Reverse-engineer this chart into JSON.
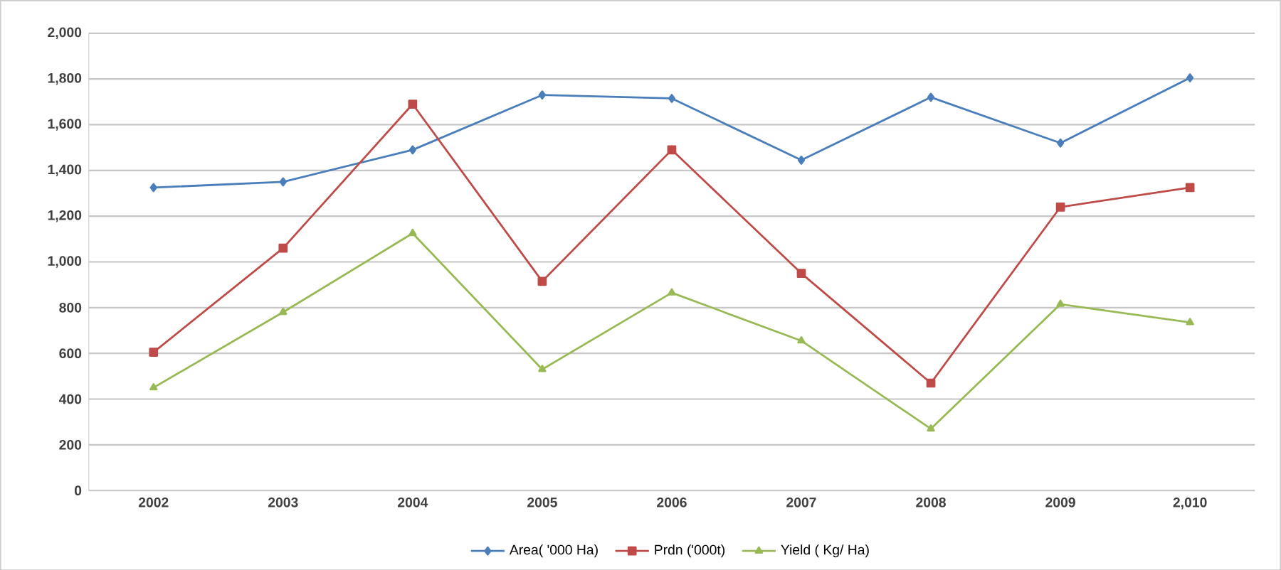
{
  "chart_data": {
    "type": "line",
    "categories": [
      "2002",
      "2003",
      "2004",
      "2005",
      "2006",
      "2007",
      "2008",
      "2009",
      "2,010"
    ],
    "ylim": [
      0,
      2000
    ],
    "yticks": [
      0,
      200,
      400,
      600,
      800,
      {
        "value": 1000,
        "label": "1,000"
      },
      {
        "value": 1200,
        "label": "1,200"
      },
      {
        "value": 1400,
        "label": "1,400"
      },
      {
        "value": 1600,
        "label": "1,600"
      },
      {
        "value": 1800,
        "label": "1,800"
      },
      {
        "value": 2000,
        "label": "2,000"
      }
    ],
    "grid": "y",
    "legend": "bottom",
    "line_style": "solid",
    "series": [
      {
        "name": "Area( '000 Ha)",
        "color": "#4a7ebb",
        "marker": "diamond",
        "values": [
          1325,
          1350,
          1490,
          1730,
          1715,
          1445,
          1720,
          1520,
          1805
        ]
      },
      {
        "name": "Prdn ('000t)",
        "color": "#be4b48",
        "marker": "square",
        "values": [
          605,
          1060,
          1690,
          915,
          1490,
          950,
          470,
          1240,
          1325
        ]
      },
      {
        "name": "Yield ( Kg/ Ha)",
        "color": "#98b954",
        "marker": "triangle",
        "values": [
          450,
          780,
          1125,
          530,
          865,
          655,
          270,
          815,
          735
        ]
      }
    ]
  }
}
